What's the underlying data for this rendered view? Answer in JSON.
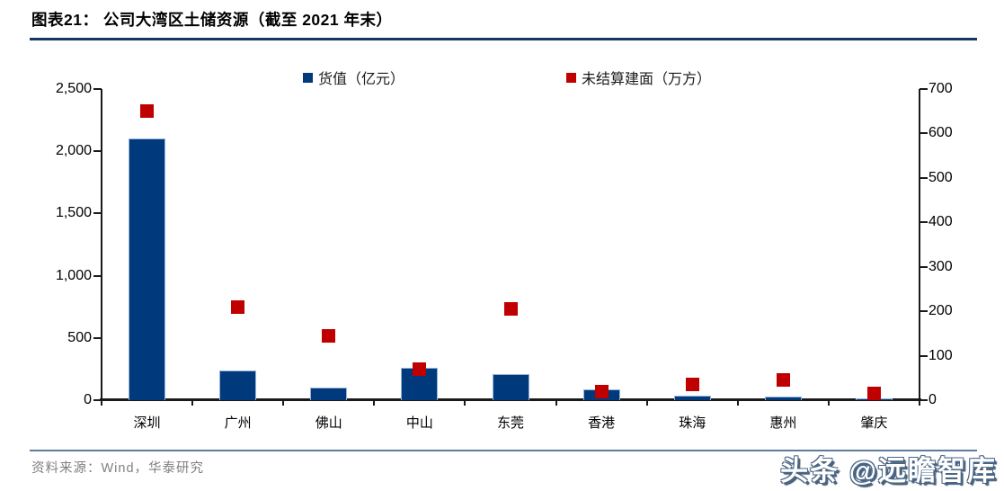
{
  "header": {
    "title": "图表21：  公司大湾区土储资源（截至 2021 年末）"
  },
  "legend": {
    "items": [
      {
        "label": "货值（亿元）",
        "color": "#003A7C"
      },
      {
        "label": "未结算建面（万方）",
        "color": "#C00000"
      }
    ]
  },
  "chart_data": {
    "type": "bar",
    "subtype": "combo-bar-plus-point-markers",
    "title": "公司大湾区土储资源（截至 2021 年末）",
    "categories": [
      "深圳",
      "广州",
      "佛山",
      "中山",
      "东莞",
      "香港",
      "珠海",
      "惠州",
      "肇庆"
    ],
    "series": [
      {
        "name": "货值（亿元）",
        "type": "bar",
        "axis": "left",
        "color": "#003A7C",
        "values": [
          2100,
          240,
          100,
          260,
          210,
          90,
          35,
          30,
          15
        ]
      },
      {
        "name": "未结算建面（万方）",
        "type": "point",
        "axis": "right",
        "color": "#C00000",
        "values": [
          650,
          210,
          145,
          70,
          205,
          20,
          35,
          45,
          15
        ]
      }
    ],
    "left_axis": {
      "min": 0,
      "max": 2500,
      "ticks": [
        {
          "v": 0,
          "label": "0"
        },
        {
          "v": 500,
          "label": "500"
        },
        {
          "v": 1000,
          "label": "1,000"
        },
        {
          "v": 1500,
          "label": "1,500"
        },
        {
          "v": 2000,
          "label": "2,000"
        },
        {
          "v": 2500,
          "label": "2,500"
        }
      ]
    },
    "right_axis": {
      "min": 0,
      "max": 700,
      "ticks": [
        {
          "v": 0,
          "label": "0"
        },
        {
          "v": 100,
          "label": "100"
        },
        {
          "v": 200,
          "label": "200"
        },
        {
          "v": 300,
          "label": "300"
        },
        {
          "v": 400,
          "label": "400"
        },
        {
          "v": 500,
          "label": "500"
        },
        {
          "v": 600,
          "label": "600"
        },
        {
          "v": 700,
          "label": "700"
        }
      ]
    },
    "grid": false,
    "legend_position": "top"
  },
  "footer": {
    "source": "资料来源：Wind，华泰研究"
  },
  "watermark": {
    "text": "头条 @远瞻智库"
  },
  "colors": {
    "bar_fill": "#003A7C",
    "bar_border": "#95B3D7",
    "point_fill": "#C00000",
    "title_rule": "#17375E",
    "footer_rule": "#5C7D9E",
    "source_text": "#808080",
    "axis": "#1a1a1a"
  }
}
